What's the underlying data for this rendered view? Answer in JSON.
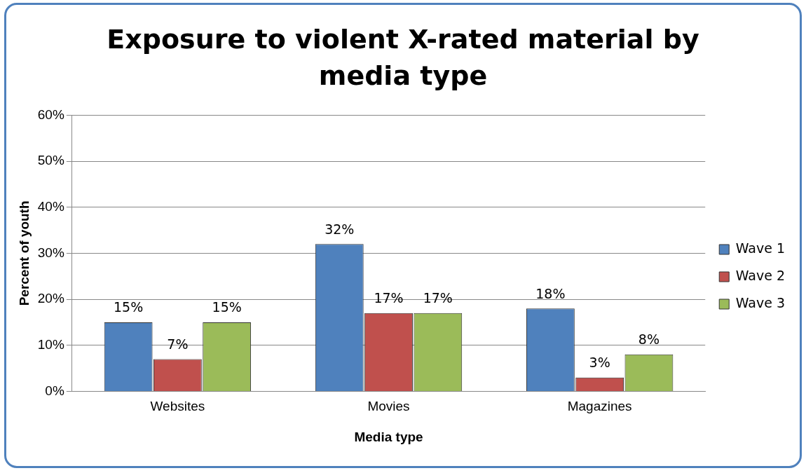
{
  "chart_data": {
    "type": "bar",
    "title": "Exposure to violent X-rated material by media type",
    "xlabel": "Media type",
    "ylabel": "Percent of youth",
    "categories": [
      "Websites",
      "Movies",
      "Magazines"
    ],
    "series": [
      {
        "name": "Wave 1",
        "color": "#4f81bd",
        "values": [
          15,
          32,
          18
        ],
        "value_labels": [
          "15%",
          "32%",
          "18%"
        ]
      },
      {
        "name": "Wave 2",
        "color": "#c0504d",
        "values": [
          7,
          17,
          3
        ],
        "value_labels": [
          "7%",
          "17%",
          "3%"
        ]
      },
      {
        "name": "Wave 3",
        "color": "#9bbb59",
        "values": [
          15,
          17,
          8
        ],
        "value_labels": [
          "15%",
          "17%",
          "8%"
        ]
      }
    ],
    "ylim": [
      0,
      60
    ],
    "yticks": [
      {
        "value": 0,
        "label": "0%"
      },
      {
        "value": 10,
        "label": "10%"
      },
      {
        "value": 20,
        "label": "20%"
      },
      {
        "value": 30,
        "label": "30%"
      },
      {
        "value": 40,
        "label": "40%"
      },
      {
        "value": 50,
        "label": "50%"
      },
      {
        "value": 60,
        "label": "60%"
      }
    ],
    "grid": "y",
    "legend": "right"
  }
}
